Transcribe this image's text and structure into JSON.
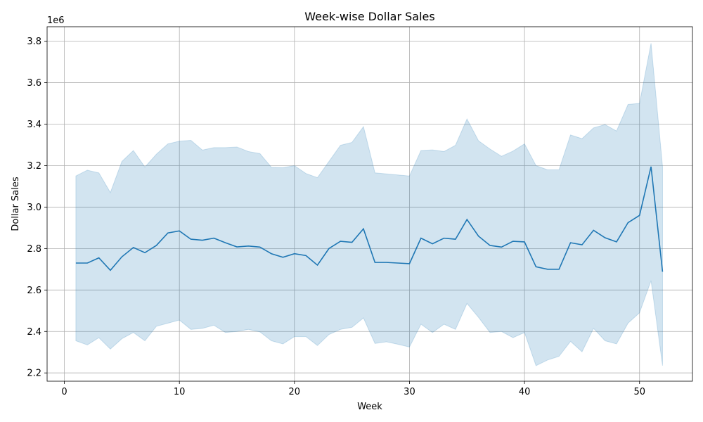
{
  "chart_data": {
    "type": "line",
    "title": "Week-wise Dollar Sales",
    "xlabel": "Week",
    "ylabel": "Dollar Sales",
    "y_offset_label": "1e6",
    "xlim": [
      -1.5,
      54.6
    ],
    "ylim": [
      2.16,
      3.87
    ],
    "x_ticks": [
      0,
      10,
      20,
      30,
      40,
      50
    ],
    "y_ticks": [
      2.2,
      2.4,
      2.6,
      2.8,
      3.0,
      3.2,
      3.4,
      3.6,
      3.8
    ],
    "grid": true,
    "line_color": "#1f77b4",
    "band_color": "#1f77b4",
    "series": [
      {
        "x": [
          1,
          2,
          3,
          4,
          5,
          6,
          7,
          8,
          9,
          10,
          11,
          12,
          13,
          14,
          15,
          16,
          17,
          18,
          19,
          20,
          21,
          22,
          23,
          24,
          25,
          26,
          27,
          28,
          29,
          30,
          31,
          32,
          33,
          34,
          35,
          36,
          37,
          38,
          39,
          40,
          41,
          42,
          43,
          44,
          45,
          46,
          47,
          48,
          49,
          50,
          51,
          52
        ],
        "y": [
          2.73,
          2.73,
          2.755,
          2.695,
          2.76,
          2.805,
          2.78,
          2.815,
          2.875,
          2.885,
          2.845,
          2.84,
          2.85,
          2.828,
          2.808,
          2.812,
          2.807,
          2.775,
          2.758,
          2.775,
          2.766,
          2.72,
          2.8,
          2.835,
          2.83,
          2.895,
          2.733,
          2.733,
          2.73,
          2.727,
          2.85,
          2.823,
          2.85,
          2.845,
          2.94,
          2.86,
          2.815,
          2.807,
          2.835,
          2.832,
          2.712,
          2.7,
          2.7,
          2.828,
          2.818,
          2.888,
          2.852,
          2.832,
          2.925,
          2.96,
          3.195,
          2.688
        ],
        "lower": [
          2.355,
          2.335,
          2.37,
          2.315,
          2.365,
          2.395,
          2.355,
          2.425,
          2.44,
          2.455,
          2.41,
          2.415,
          2.43,
          2.395,
          2.4,
          2.41,
          2.398,
          2.355,
          2.34,
          2.375,
          2.375,
          2.332,
          2.385,
          2.41,
          2.42,
          2.465,
          2.342,
          2.35,
          2.338,
          2.325,
          2.435,
          2.395,
          2.435,
          2.41,
          2.535,
          2.468,
          2.395,
          2.4,
          2.37,
          2.395,
          2.235,
          2.262,
          2.28,
          2.352,
          2.302,
          2.415,
          2.355,
          2.34,
          2.44,
          2.49,
          2.645,
          2.235
        ],
        "upper": [
          3.15,
          3.178,
          3.165,
          3.07,
          3.22,
          3.273,
          3.193,
          3.255,
          3.305,
          3.318,
          3.322,
          3.275,
          3.287,
          3.287,
          3.29,
          3.268,
          3.258,
          3.192,
          3.19,
          3.2,
          3.162,
          3.142,
          3.22,
          3.298,
          3.312,
          3.388,
          3.165,
          3.16,
          3.155,
          3.15,
          3.273,
          3.276,
          3.268,
          3.298,
          3.425,
          3.32,
          3.28,
          3.245,
          3.27,
          3.305,
          3.2,
          3.18,
          3.18,
          3.348,
          3.33,
          3.382,
          3.398,
          3.367,
          3.495,
          3.5,
          3.79,
          3.195
        ]
      }
    ]
  }
}
